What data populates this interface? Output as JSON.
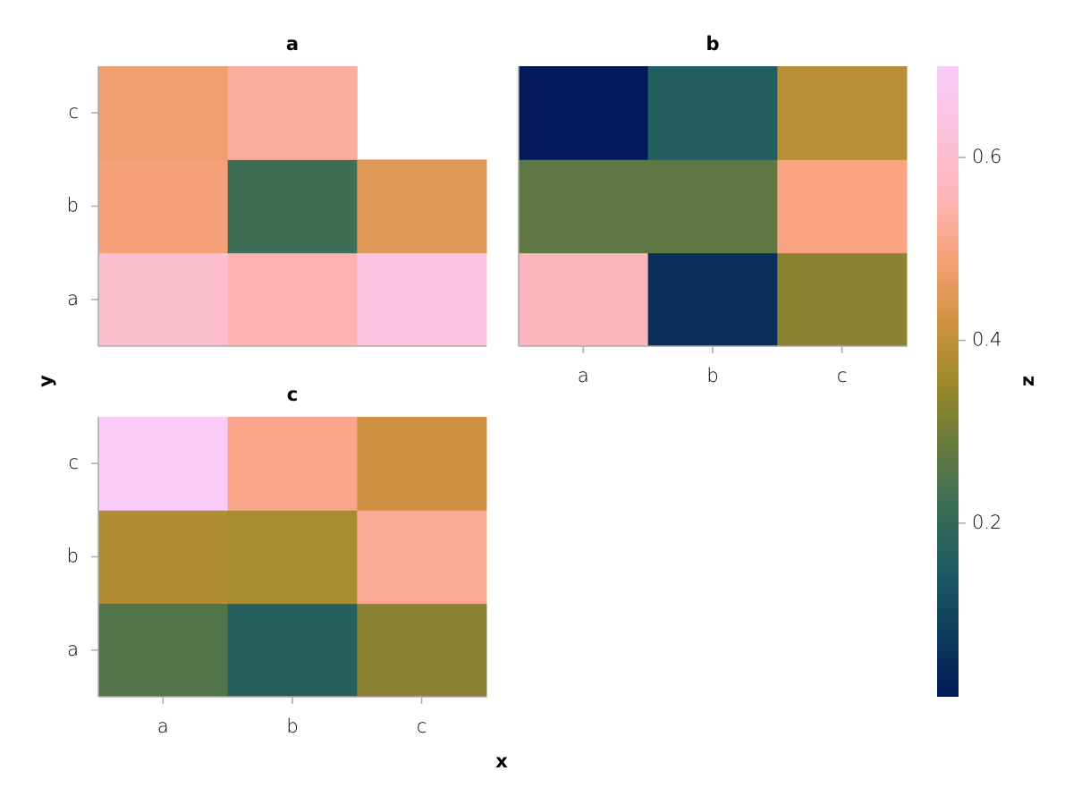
{
  "chart_data": {
    "type": "heatmap",
    "x_label": "x",
    "y_label": "y",
    "x_categories": [
      "a",
      "b",
      "c"
    ],
    "y_categories": [
      "a",
      "b",
      "c"
    ],
    "colormap": [
      "#011959",
      "#0f3d5c",
      "#1c5a62",
      "#3c6d56",
      "#687b3e",
      "#9d892b",
      "#d29343",
      "#f8a17b",
      "#fdb7bc",
      "#fcc3de",
      "#faccfa"
    ],
    "colorbar": {
      "label": "z",
      "lim": [
        0.01,
        0.7
      ],
      "ticks": [
        0.2,
        0.4,
        0.6
      ]
    },
    "facets": [
      {
        "title": "a",
        "values": [
          [
            0.6,
            0.55,
            0.63
          ],
          [
            0.49,
            0.22,
            0.45
          ],
          [
            0.48,
            0.53,
            null
          ]
        ]
      },
      {
        "title": "b",
        "values": [
          [
            0.56,
            0.05,
            0.33
          ],
          [
            0.27,
            0.27,
            0.5
          ],
          [
            0.01,
            0.16,
            0.39
          ]
        ]
      },
      {
        "title": "c",
        "values": [
          [
            0.25,
            0.17,
            0.33
          ],
          [
            0.38,
            0.37,
            0.52
          ],
          [
            0.69,
            0.51,
            0.42
          ]
        ]
      }
    ]
  }
}
